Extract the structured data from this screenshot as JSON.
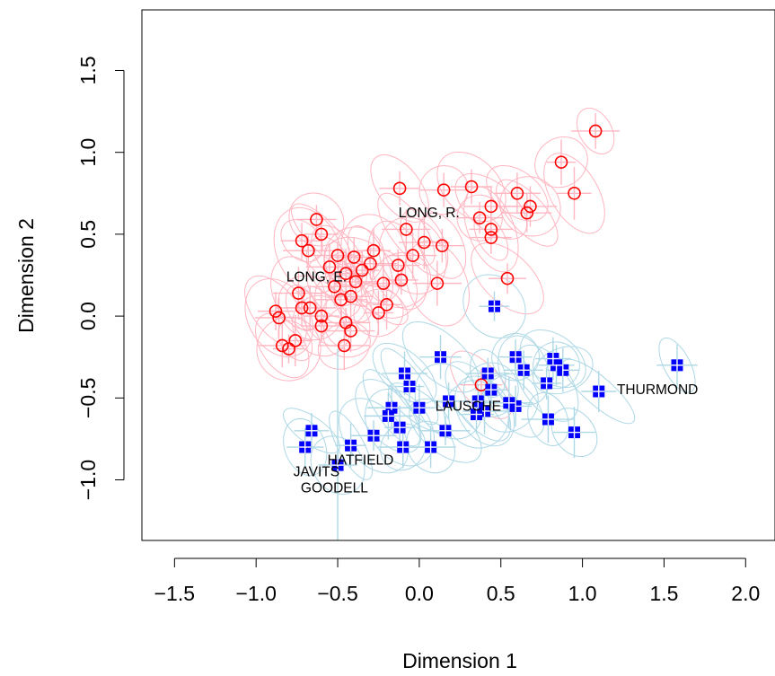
{
  "chart_data": {
    "type": "scatter",
    "xlabel": "Dimension 1",
    "ylabel": "Dimension 2",
    "xlim": [
      -1.7,
      2.18
    ],
    "ylim": [
      -1.37,
      1.87
    ],
    "x_ticks": [
      -1.5,
      -1.0,
      -0.5,
      0.0,
      0.5,
      1.0,
      1.5,
      2.0
    ],
    "x_tick_labels": [
      "−1.5",
      "−1.0",
      "−0.5",
      "0.0",
      "0.5",
      "1.0",
      "1.5",
      "2.0"
    ],
    "y_ticks": [
      -1.0,
      -0.5,
      0.0,
      0.5,
      1.0,
      1.5
    ],
    "y_tick_labels": [
      "−1.0",
      "−0.5",
      "0.0",
      "0.5",
      "1.0",
      "1.5"
    ],
    "series": [
      {
        "marker": "open-circle",
        "color": "#ff0000",
        "ellipse_color": "#ffb6c1",
        "points": [
          [
            1.08,
            1.13
          ],
          [
            0.87,
            0.94
          ],
          [
            0.95,
            0.75
          ],
          [
            0.6,
            0.75
          ],
          [
            0.66,
            0.63
          ],
          [
            0.68,
            0.67
          ],
          [
            0.32,
            0.79
          ],
          [
            0.37,
            0.6
          ],
          [
            0.44,
            0.67
          ],
          [
            0.44,
            0.53
          ],
          [
            0.44,
            0.48
          ],
          [
            0.54,
            0.23
          ],
          [
            0.15,
            0.77
          ],
          [
            0.14,
            0.43
          ],
          [
            0.11,
            0.2
          ],
          [
            0.03,
            0.45
          ],
          [
            -0.12,
            0.78
          ],
          [
            -0.08,
            0.53
          ],
          [
            -0.04,
            0.37
          ],
          [
            -0.13,
            0.31
          ],
          [
            -0.11,
            0.22
          ],
          [
            -0.22,
            0.2
          ],
          [
            -0.2,
            0.07
          ],
          [
            -0.25,
            0.02
          ],
          [
            -0.28,
            0.4
          ],
          [
            -0.3,
            0.32
          ],
          [
            -0.35,
            0.28
          ],
          [
            -0.39,
            0.21
          ],
          [
            -0.4,
            0.36
          ],
          [
            -0.42,
            0.12
          ],
          [
            -0.45,
            0.26
          ],
          [
            -0.48,
            0.1
          ],
          [
            -0.5,
            0.37
          ],
          [
            -0.55,
            0.3
          ],
          [
            -0.52,
            0.18
          ],
          [
            -0.6,
            0.5
          ],
          [
            -0.63,
            0.59
          ],
          [
            -0.68,
            0.4
          ],
          [
            -0.72,
            0.46
          ],
          [
            -0.6,
            0.0
          ],
          [
            -0.6,
            -0.06
          ],
          [
            -0.67,
            0.05
          ],
          [
            -0.74,
            0.14
          ],
          [
            -0.72,
            0.05
          ],
          [
            -0.45,
            -0.04
          ],
          [
            -0.42,
            -0.09
          ],
          [
            -0.46,
            -0.18
          ],
          [
            -0.76,
            -0.15
          ],
          [
            -0.84,
            -0.18
          ],
          [
            -0.8,
            -0.2
          ],
          [
            -0.86,
            -0.01
          ],
          [
            -0.88,
            0.03
          ],
          [
            0.38,
            -0.42
          ]
        ]
      },
      {
        "marker": "filled-square",
        "color": "#0000ff",
        "ellipse_color": "#add8e6",
        "points": [
          [
            1.58,
            -0.3
          ],
          [
            1.1,
            -0.46
          ],
          [
            0.95,
            -0.71
          ],
          [
            0.79,
            -0.63
          ],
          [
            0.88,
            -0.33
          ],
          [
            0.84,
            -0.3
          ],
          [
            0.82,
            -0.26
          ],
          [
            0.78,
            -0.41
          ],
          [
            0.64,
            -0.33
          ],
          [
            0.59,
            -0.25
          ],
          [
            0.59,
            -0.55
          ],
          [
            0.55,
            -0.53
          ],
          [
            0.46,
            0.06
          ],
          [
            0.42,
            -0.35
          ],
          [
            0.44,
            -0.45
          ],
          [
            0.4,
            -0.58
          ],
          [
            0.35,
            -0.6
          ],
          [
            0.36,
            -0.52
          ],
          [
            0.18,
            -0.52
          ],
          [
            0.16,
            -0.7
          ],
          [
            0.13,
            -0.25
          ],
          [
            0.07,
            -0.8
          ],
          [
            0.0,
            -0.56
          ],
          [
            -0.06,
            -0.43
          ],
          [
            -0.09,
            -0.35
          ],
          [
            -0.12,
            -0.68
          ],
          [
            -0.1,
            -0.8
          ],
          [
            -0.17,
            -0.56
          ],
          [
            -0.19,
            -0.61
          ],
          [
            -0.28,
            -0.73
          ],
          [
            -0.42,
            -0.79
          ],
          [
            -0.5,
            -0.91
          ],
          [
            -0.66,
            -0.7
          ],
          [
            -0.7,
            -0.8
          ]
        ]
      }
    ],
    "labels": [
      {
        "text": "LONG, R.",
        "x": 0.06,
        "y": 0.63
      },
      {
        "text": "LONG, E.",
        "x": -0.63,
        "y": 0.24
      },
      {
        "text": "THURMOND",
        "x": 1.46,
        "y": -0.45
      },
      {
        "text": "LAUSCHE",
        "x": 0.3,
        "y": -0.55
      },
      {
        "text": "HATFIELD",
        "x": -0.36,
        "y": -0.88
      },
      {
        "text": "JAVITS",
        "x": -0.63,
        "y": -0.95
      },
      {
        "text": "GOODELL",
        "x": -0.52,
        "y": -1.05
      }
    ]
  }
}
